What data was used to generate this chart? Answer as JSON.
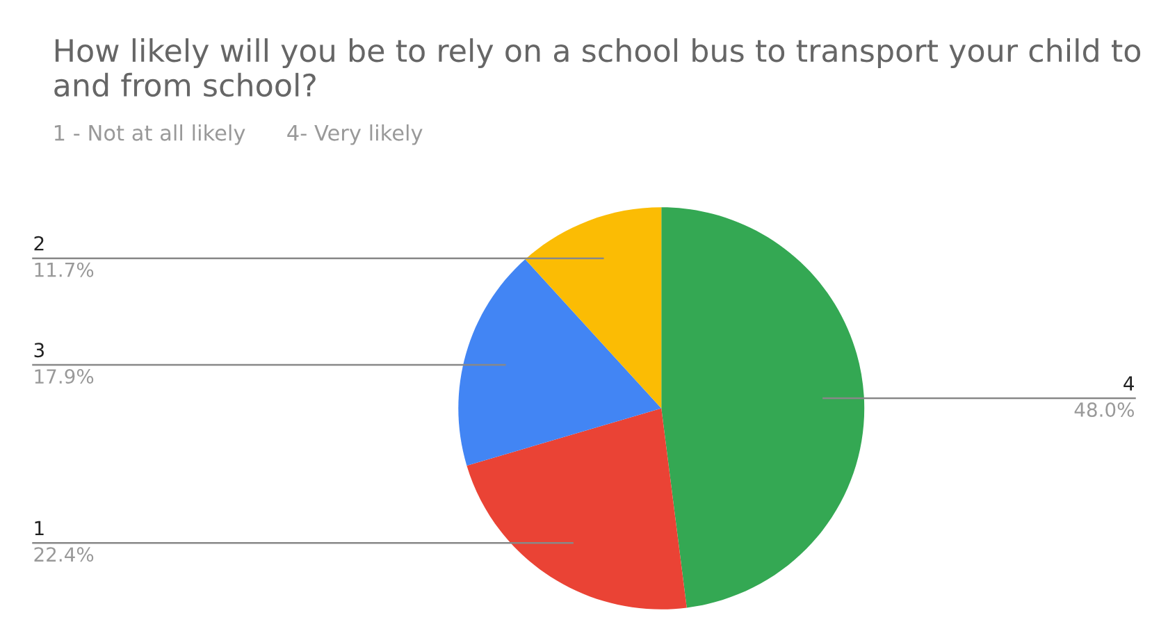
{
  "chart_data": {
    "type": "pie",
    "title": "How likely will you be to rely on a school bus to transport your child to and from school?",
    "subtitle": "1 - Not at all likely      4- Very likely",
    "categories": [
      "4",
      "1",
      "3",
      "2"
    ],
    "values": [
      48.0,
      22.4,
      17.9,
      11.7
    ],
    "value_labels": [
      "48.0%",
      "22.4%",
      "17.9%",
      "11.7%"
    ],
    "colors": [
      "#34a853",
      "#ea4335",
      "#4285f4",
      "#fbbc04"
    ]
  }
}
